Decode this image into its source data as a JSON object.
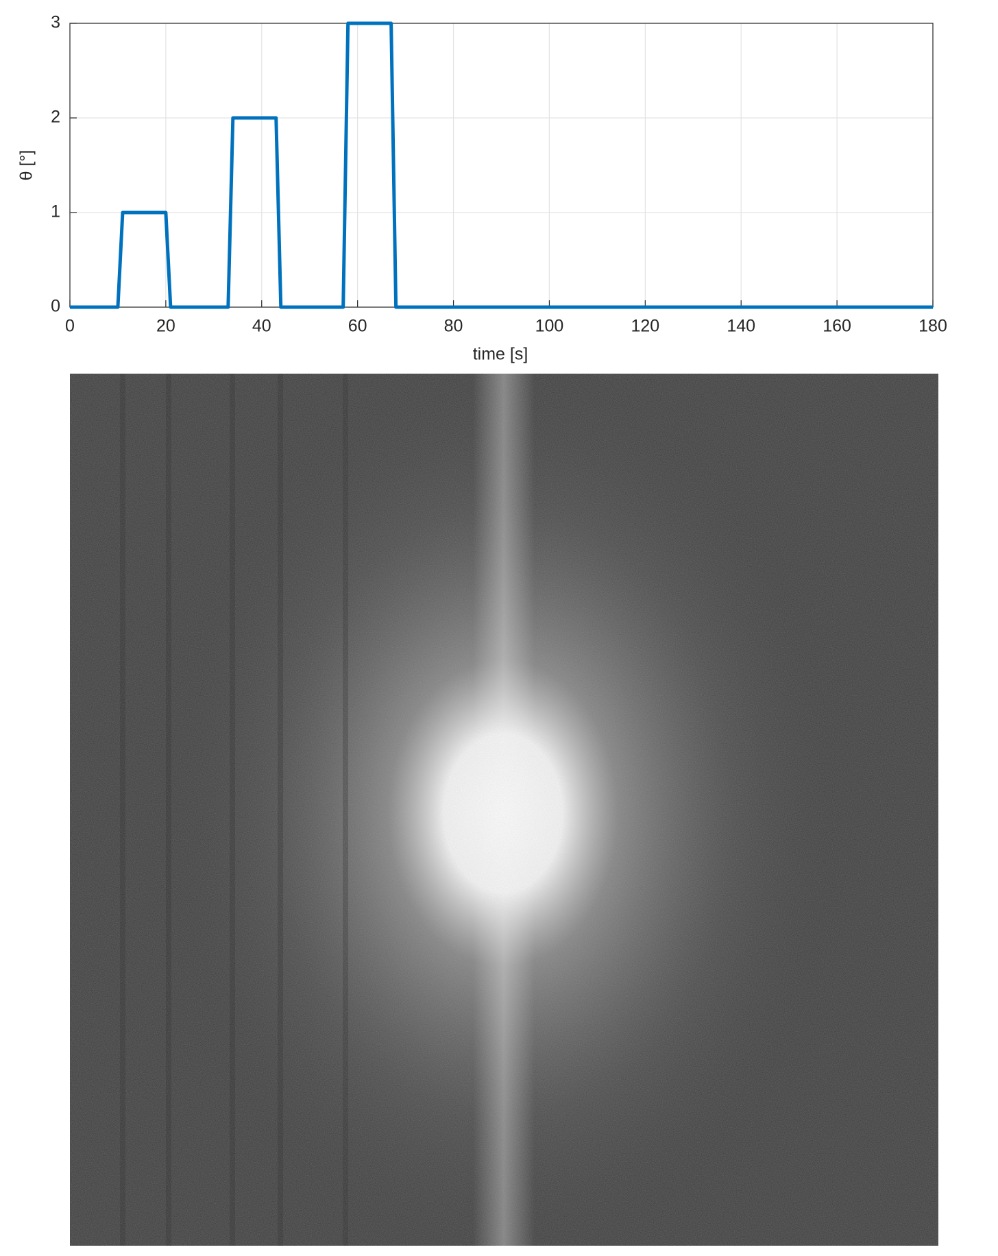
{
  "chart_data": {
    "type": "line",
    "x_label": "time [s]",
    "y_label": "θ [°]",
    "x": [
      0,
      10,
      11,
      20,
      21,
      33,
      34,
      43,
      44,
      57,
      58,
      67,
      68,
      180
    ],
    "values": [
      0,
      0,
      1,
      1,
      0,
      0,
      2,
      2,
      0,
      0,
      3,
      3,
      0,
      0
    ],
    "color": "#0072bd",
    "xlim": [
      0,
      180
    ],
    "xticks": [
      0,
      20,
      40,
      60,
      80,
      100,
      120,
      140,
      160,
      180
    ],
    "ylim": [
      0,
      3
    ],
    "yticks": [
      0,
      1,
      2,
      3
    ],
    "grid": true
  }
}
